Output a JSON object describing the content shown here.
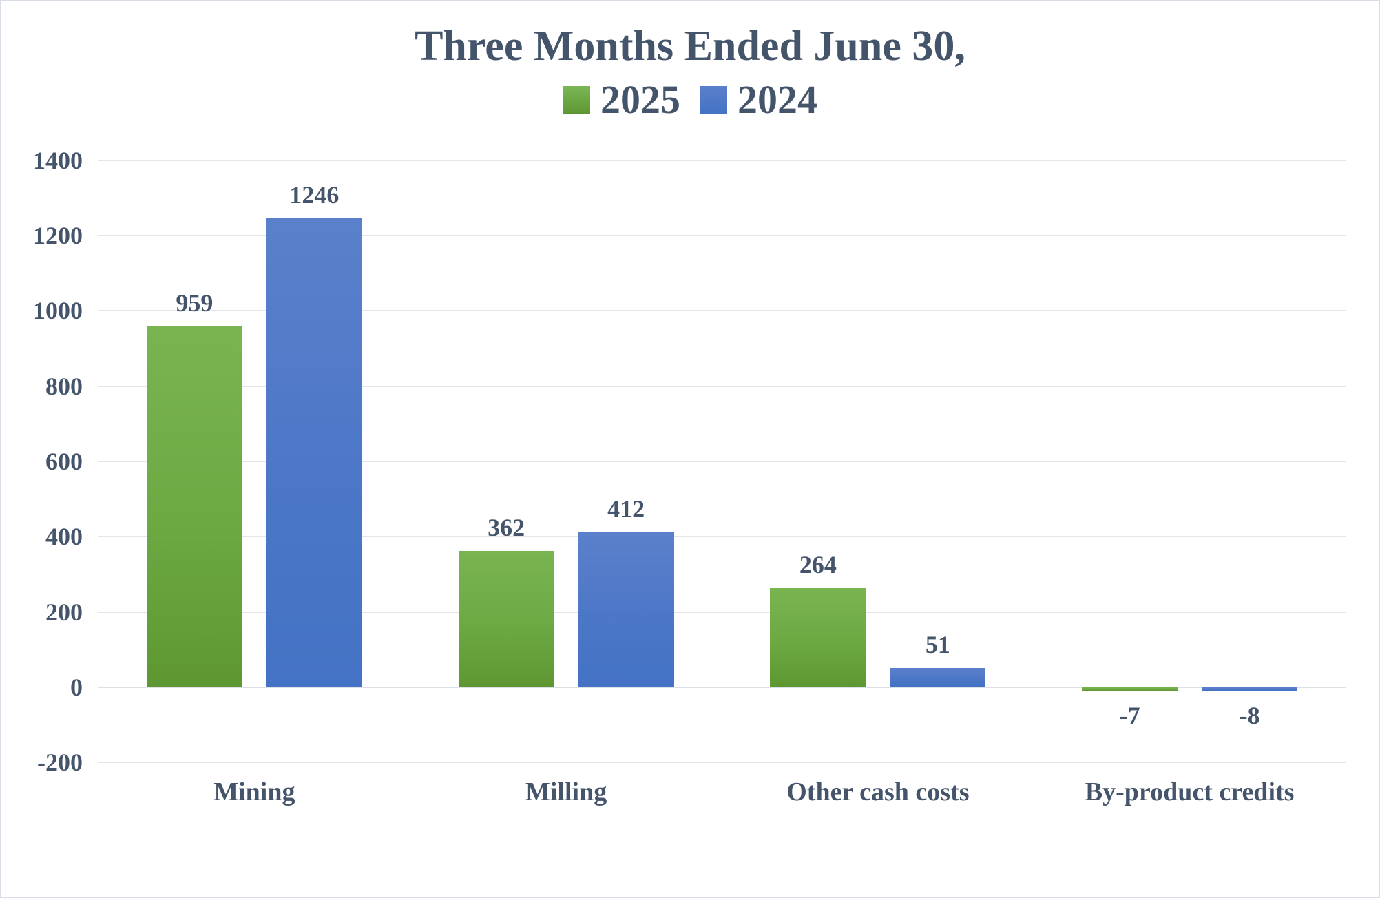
{
  "chart_data": {
    "type": "bar",
    "title": "Three Months Ended June 30,",
    "categories": [
      "Mining",
      "Milling",
      "Other cash costs",
      "By-product credits"
    ],
    "series": [
      {
        "name": "2025",
        "color": "#70AD47",
        "color_top": "#79B450",
        "color_bottom": "#5E9732",
        "values": [
          959,
          362,
          264,
          -7
        ]
      },
      {
        "name": "2024",
        "color": "#4472C4",
        "color_top": "#5B80CB",
        "color_bottom": "#4472C4",
        "values": [
          1246,
          412,
          51,
          -8
        ]
      }
    ],
    "data_labels": [
      [
        "959",
        "362",
        "264",
        "-7"
      ],
      [
        "1246",
        "412",
        "51",
        "-8"
      ]
    ],
    "ylim": [
      -200,
      1400
    ],
    "ytick_step": 200,
    "yticks": [
      "-200",
      "0",
      "200",
      "400",
      "600",
      "800",
      "1000",
      "1200",
      "1400"
    ],
    "xlabel": "",
    "ylabel": "",
    "grid": true,
    "legend_position": "top"
  },
  "colors": {
    "text": "#44546A",
    "gridline": "#E3E5E9",
    "canvas_border": "#D9DEE6",
    "background": "#FFFFFF",
    "series_2025": "#70AD47",
    "series_2024": "#4472C4"
  }
}
